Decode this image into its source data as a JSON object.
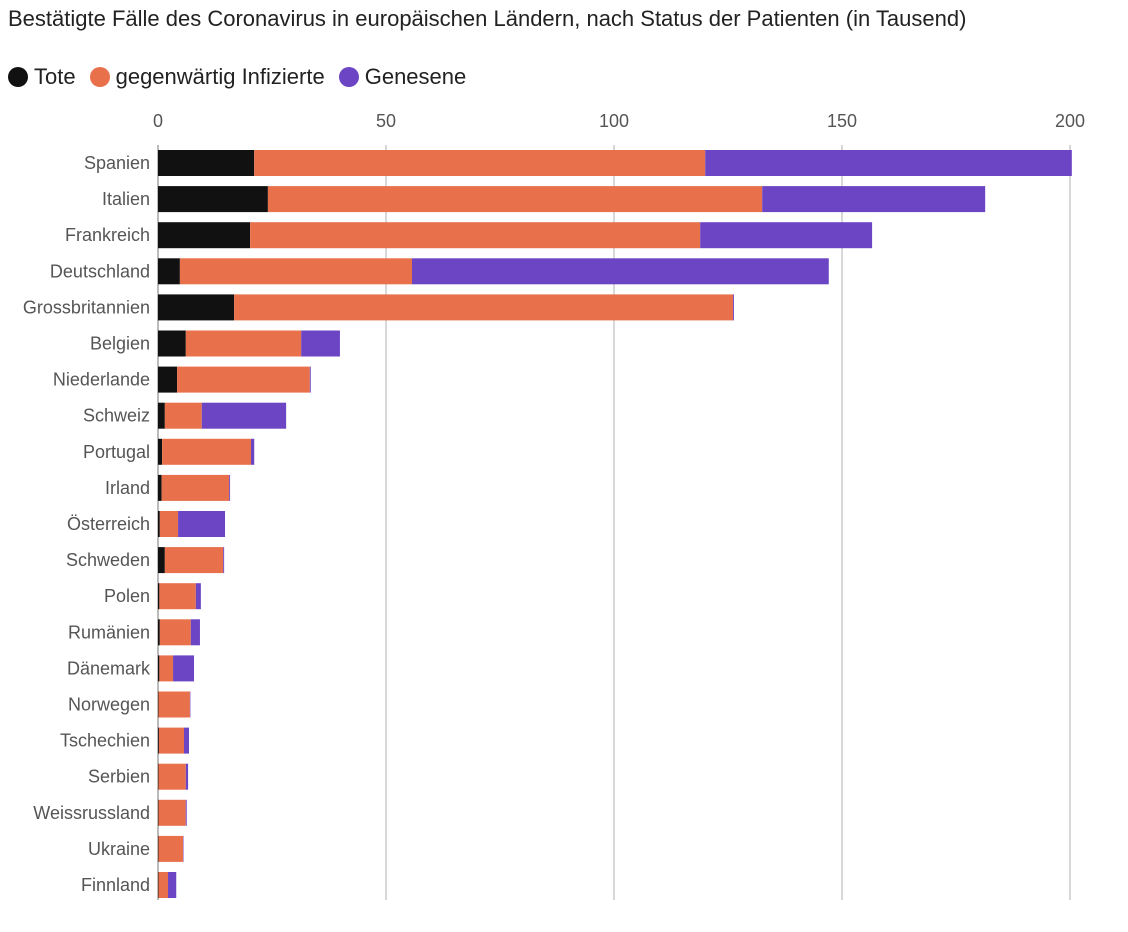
{
  "chart_data": {
    "type": "bar",
    "orientation": "horizontal",
    "stacked": true,
    "title": "Bestätigte Fälle des Coronavirus in europäischen Ländern, nach Status der Patienten (in Tausend)",
    "xlim": [
      0,
      200
    ],
    "xticks": [
      0,
      50,
      100,
      150,
      200
    ],
    "grid": true,
    "legend_position": "top-left",
    "categories": [
      "Spanien",
      "Italien",
      "Frankreich",
      "Deutschland",
      "Grossbritannien",
      "Belgien",
      "Niederlande",
      "Schweiz",
      "Portugal",
      "Irland",
      "Österreich",
      "Schweden",
      "Polen",
      "Rumänien",
      "Dänemark",
      "Norwegen",
      "Tschechien",
      "Serbien",
      "Weissrussland",
      "Ukraine",
      "Finnland"
    ],
    "series": [
      {
        "name": "Tote",
        "color": "#111111",
        "values": [
          21.1,
          24.1,
          20.2,
          4.8,
          16.7,
          6.1,
          4.2,
          1.5,
          0.9,
          0.8,
          0.4,
          1.5,
          0.3,
          0.4,
          0.3,
          0.1,
          0.2,
          0.1,
          0.1,
          0.1,
          0.1
        ]
      },
      {
        "name": "gegenwärtig Infizierte",
        "color": "#e8704a",
        "values": [
          98.9,
          108.4,
          98.7,
          50.9,
          109.4,
          25.3,
          29.1,
          8.1,
          19.5,
          14.8,
          4.0,
          12.8,
          8.0,
          6.8,
          3.0,
          6.9,
          5.5,
          6.0,
          6.0,
          5.4,
          2.1
        ]
      },
      {
        "name": "Genesene",
        "color": "#6c45c4",
        "values": [
          80.4,
          48.9,
          37.7,
          91.4,
          0.2,
          8.5,
          0.2,
          18.5,
          0.7,
          0.2,
          10.3,
          0.2,
          1.1,
          2.0,
          4.6,
          0.1,
          1.1,
          0.5,
          0.2,
          0.1,
          1.8
        ]
      }
    ]
  }
}
